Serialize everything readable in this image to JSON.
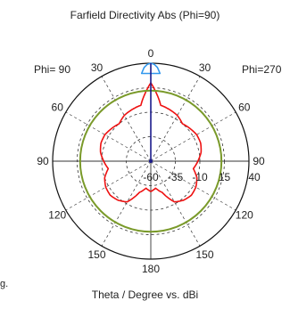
{
  "chart_data": {
    "type": "polar",
    "title": "Farfield Directivity Abs (Phi=90)",
    "xlabel": "Theta / Degree vs. dBi",
    "left_label": "Phi= 90",
    "right_label": "Phi=270",
    "angle_tick_labels": [
      "0",
      "30",
      "60",
      "90",
      "120",
      "150",
      "180",
      "150",
      "120",
      "90",
      "60",
      "30"
    ],
    "radial_tick_labels": [
      "-60",
      "-35",
      "-10",
      "15",
      "40"
    ],
    "radial_range": [
      -60,
      40
    ],
    "truncated_text": "g.",
    "series": [
      {
        "color": "#ee1111",
        "theta_step_deg": 10,
        "theta_deg_range": [
          -180,
          180
        ],
        "dBi": [
          -29,
          -32,
          -26,
          -12,
          -8,
          -6,
          -7,
          -10,
          -16,
          -12,
          -8,
          -6,
          -6,
          -8,
          -10,
          -6,
          -4,
          -2,
          20,
          -2,
          -4,
          -6,
          -10,
          -8,
          -6,
          -6,
          -8,
          -12,
          -16,
          -10,
          -7,
          -6,
          -8,
          -12,
          -26,
          -32,
          -29
        ]
      },
      {
        "color": "#3399ee",
        "theta_deg": [
          -6,
          -4,
          -2,
          0,
          2,
          4,
          6
        ],
        "dBi": [
          30,
          36,
          39,
          40,
          39,
          36,
          30
        ]
      },
      {
        "color": "#7a9a2a",
        "constant_dBi": 12
      }
    ]
  }
}
